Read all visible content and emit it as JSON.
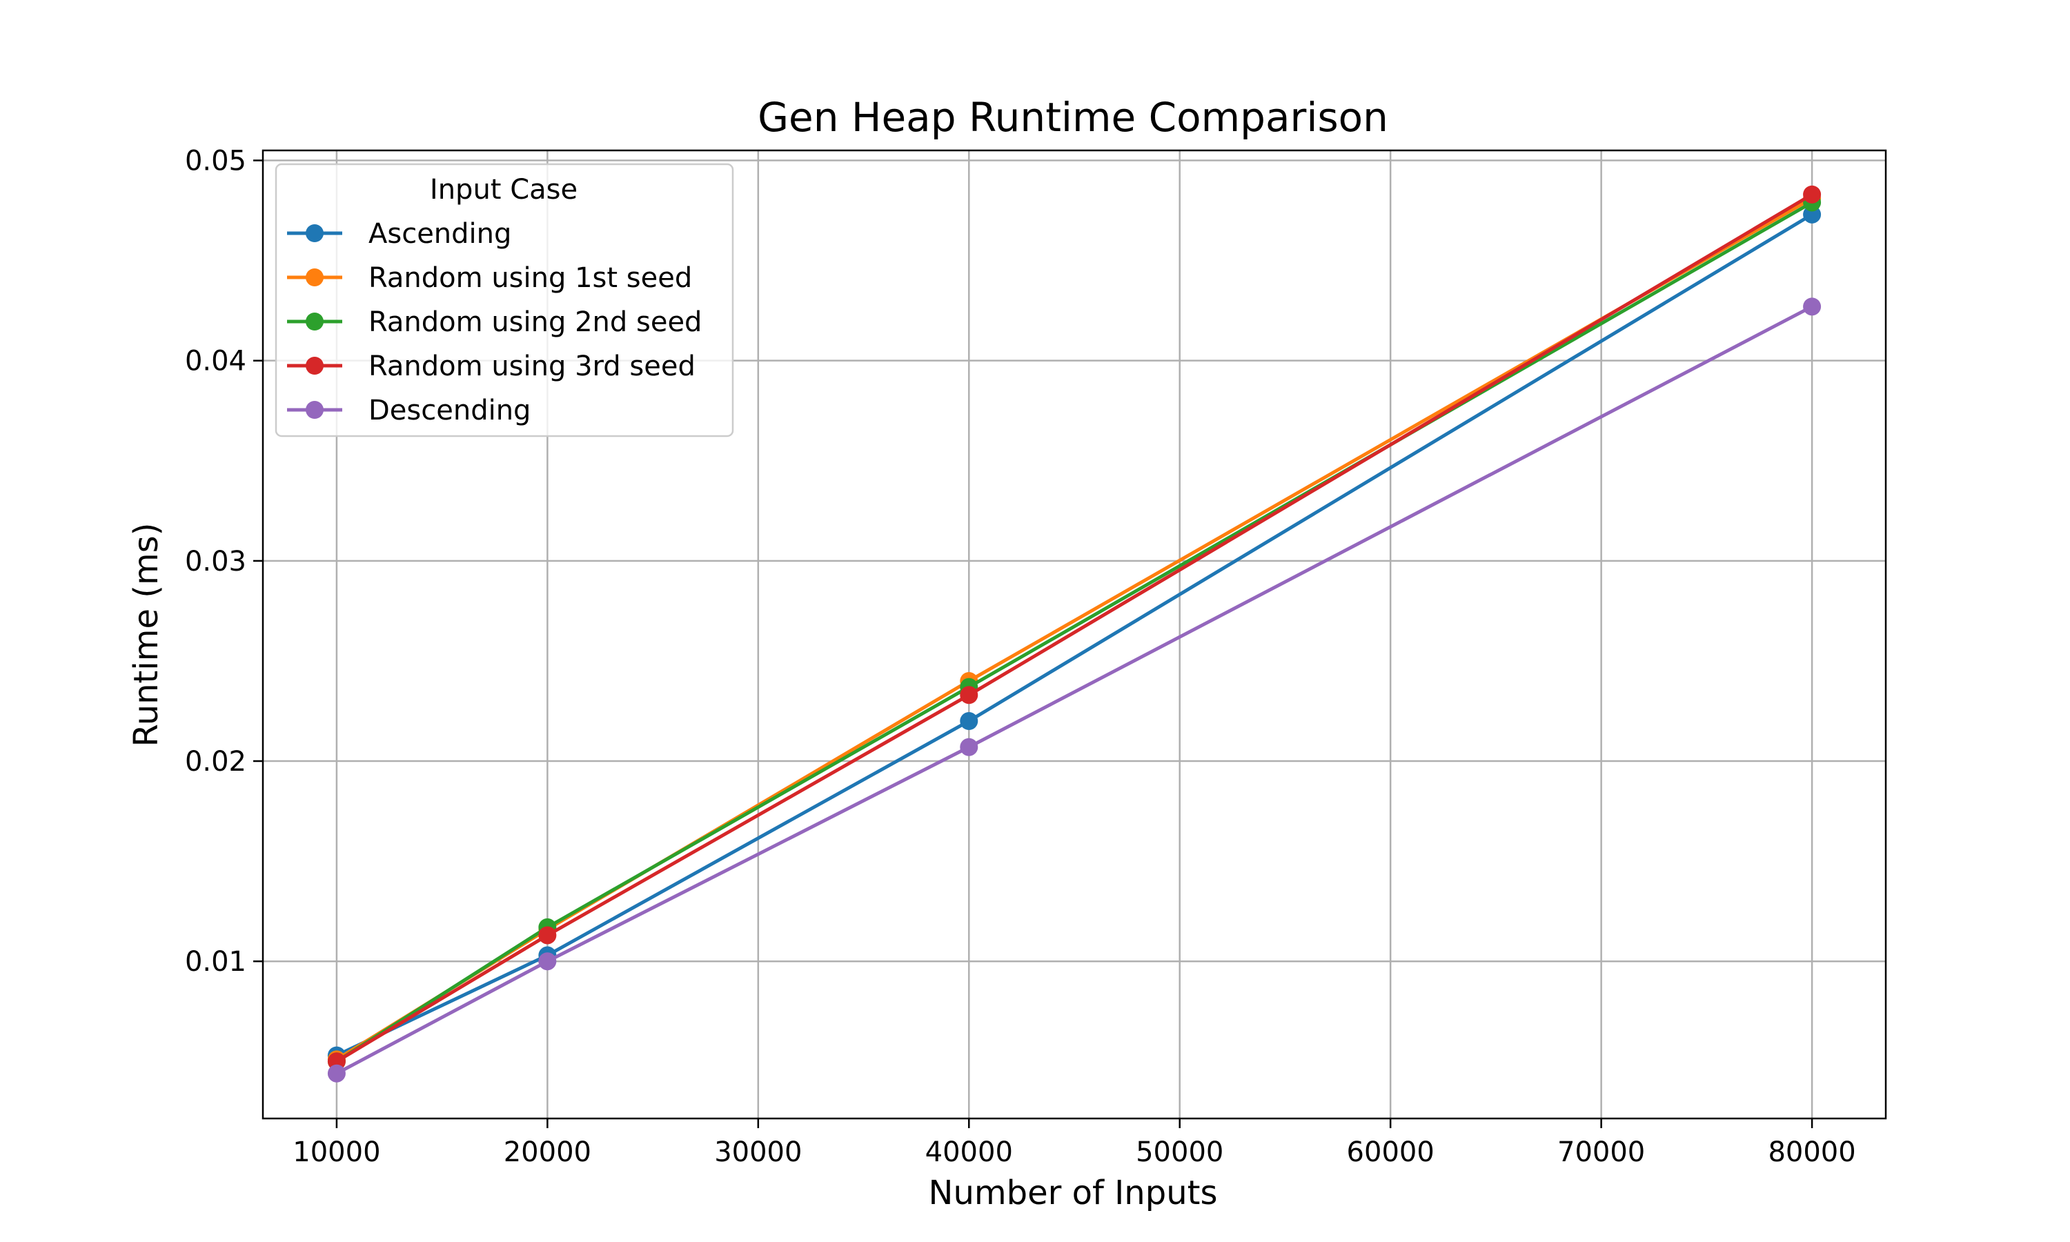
{
  "chart_data": {
    "type": "line",
    "title": "Gen Heap Runtime Comparison",
    "xlabel": "Number of Inputs",
    "ylabel": "Runtime (ms)",
    "x": [
      10000,
      20000,
      40000,
      80000
    ],
    "xlim": [
      6500,
      83500
    ],
    "ylim": [
      0.00215,
      0.0505
    ],
    "xticks": [
      10000,
      20000,
      30000,
      40000,
      50000,
      60000,
      70000,
      80000
    ],
    "xtick_labels": [
      "10000",
      "20000",
      "30000",
      "40000",
      "50000",
      "60000",
      "70000",
      "80000"
    ],
    "yticks": [
      0.01,
      0.02,
      0.03,
      0.04,
      0.05
    ],
    "ytick_labels": [
      "0.01",
      "0.02",
      "0.03",
      "0.04",
      "0.05"
    ],
    "grid": true,
    "legend": {
      "title": "Input Case",
      "placement": "top-left"
    },
    "series": [
      {
        "name": "Ascending",
        "color": "#1f77b4",
        "values": [
          0.0053,
          0.0103,
          0.022,
          0.0473
        ]
      },
      {
        "name": "Random using 1st seed",
        "color": "#ff7f0e",
        "values": [
          0.0051,
          0.0116,
          0.024,
          0.0481
        ]
      },
      {
        "name": "Random using 2nd seed",
        "color": "#2ca02c",
        "values": [
          0.005,
          0.0117,
          0.0237,
          0.0479
        ]
      },
      {
        "name": "Random using 3rd seed",
        "color": "#d62728",
        "values": [
          0.005,
          0.0113,
          0.0233,
          0.0483
        ]
      },
      {
        "name": "Descending",
        "color": "#9467bd",
        "values": [
          0.0044,
          0.01,
          0.0207,
          0.0427
        ]
      }
    ]
  }
}
